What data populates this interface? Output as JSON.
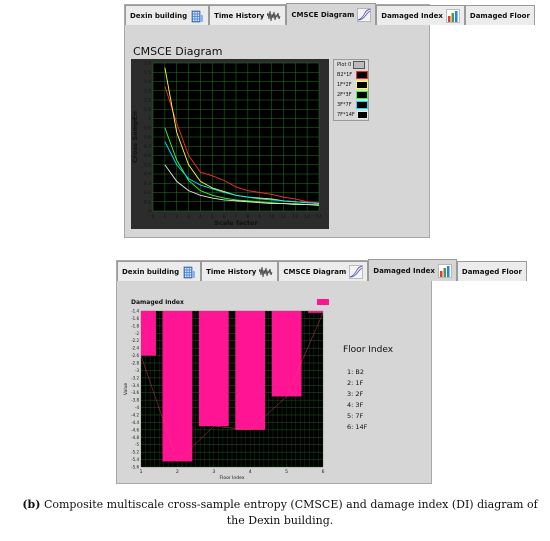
{
  "tabs_a": [
    {
      "label": "Dexin building",
      "icon": "building-icon"
    },
    {
      "label": "Time History",
      "icon": "waveform-icon"
    },
    {
      "label": "CMSCE Diagram",
      "icon": "line-chart-icon",
      "active": true
    },
    {
      "label": "Damaged Index",
      "icon": "bar-chart-icon"
    },
    {
      "label": "Damaged Floor",
      "icon": ""
    }
  ],
  "tabs_b": [
    {
      "label": "Dexin building",
      "icon": "building-icon"
    },
    {
      "label": "Time History",
      "icon": "waveform-icon"
    },
    {
      "label": "CMSCE Diagram",
      "icon": "line-chart-icon"
    },
    {
      "label": "Damaged Index",
      "icon": "bar-chart-icon",
      "active": true
    },
    {
      "label": "Damaged Floor",
      "icon": ""
    }
  ],
  "floor_index": {
    "title": "Floor Index",
    "items": [
      "1: B2",
      "2: 1F",
      "3: 2F",
      "4: 3F",
      "5: 7F",
      "6: 14F"
    ]
  },
  "caption": {
    "label": "(b)",
    "text": "Composite multiscale cross-sample entropy (CMSCE) and damage index (DI) diagram of the Dexin building."
  },
  "colors": {
    "grid_green": "#1f7a1f",
    "bar_pink": "#ff1493",
    "panel_gray": "#d6d6d6"
  },
  "chart_data": [
    {
      "type": "line",
      "title": "CMSCE Diagram",
      "xlabel": "Scale factor",
      "ylabel": "Cross SampEn",
      "xlim": [
        0,
        14
      ],
      "ylim": [
        0,
        1.6
      ],
      "x_ticks": [
        0,
        1,
        2,
        3,
        4,
        5,
        6,
        7,
        8,
        9,
        10,
        11,
        12,
        13,
        14
      ],
      "y_ticks": [
        0,
        0.1,
        0.2,
        0.3,
        0.4,
        0.5,
        0.6,
        0.7,
        0.8,
        0.9,
        1,
        1.1,
        1.2,
        1.3,
        1.4,
        1.5,
        1.6
      ],
      "grid": true,
      "legend_position": "right",
      "legend_header": "Plot 0",
      "x": [
        1,
        2,
        3,
        4,
        5,
        6,
        7,
        8,
        9,
        10,
        11,
        12,
        13,
        14
      ],
      "series": [
        {
          "name": "B2*1F",
          "color": "#ff2b2b",
          "values": [
            1.35,
            0.95,
            0.6,
            0.42,
            0.38,
            0.33,
            0.26,
            0.22,
            0.2,
            0.18,
            0.15,
            0.13,
            0.1,
            0.09
          ]
        },
        {
          "name": "1F*2F",
          "color": "#ffff33",
          "values": [
            1.55,
            0.85,
            0.5,
            0.32,
            0.25,
            0.21,
            0.17,
            0.15,
            0.14,
            0.13,
            0.11,
            0.1,
            0.09,
            0.08
          ]
        },
        {
          "name": "2F*3F",
          "color": "#33ff33",
          "values": [
            0.9,
            0.55,
            0.33,
            0.22,
            0.17,
            0.14,
            0.12,
            0.11,
            0.1,
            0.09,
            0.08,
            0.08,
            0.07,
            0.07
          ]
        },
        {
          "name": "3F*7F",
          "color": "#00e5ff",
          "values": [
            0.75,
            0.5,
            0.35,
            0.28,
            0.24,
            0.2,
            0.17,
            0.15,
            0.13,
            0.12,
            0.11,
            0.1,
            0.09,
            0.08
          ]
        },
        {
          "name": "7F*14F",
          "color": "#e8e8e8",
          "values": [
            0.5,
            0.32,
            0.22,
            0.17,
            0.14,
            0.12,
            0.11,
            0.1,
            0.09,
            0.08,
            0.08,
            0.07,
            0.07,
            0.06
          ]
        }
      ]
    },
    {
      "type": "bar",
      "title": "Damaged Index",
      "xlabel": "Floor Index",
      "ylabel": "Value",
      "xlim": [
        1,
        6
      ],
      "ylim": [
        -5.6,
        -1.4
      ],
      "x_ticks": [
        1,
        2,
        3,
        4,
        5,
        6
      ],
      "y_ticks": [
        -1.4,
        -1.6,
        -1.8,
        -2,
        -2.2,
        -2.4,
        -2.6,
        -2.8,
        -3,
        -3.2,
        -3.4,
        -3.6,
        -3.8,
        -4,
        -4.2,
        -4.4,
        -4.6,
        -4.8,
        -5,
        -5.2,
        -5.4,
        -5.6
      ],
      "grid": true,
      "categories": [
        "1",
        "2",
        "3",
        "4",
        "5",
        "6"
      ],
      "values": [
        -2.6,
        -5.45,
        -4.5,
        -4.6,
        -3.7,
        -1.45
      ]
    }
  ]
}
